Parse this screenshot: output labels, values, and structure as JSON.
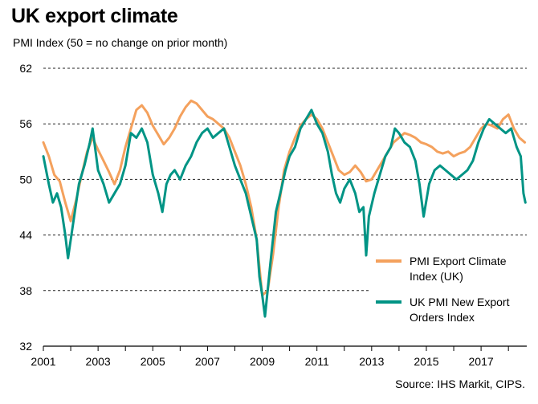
{
  "title": "UK export climate",
  "subtitle": "PMI Index  (50 = no change on prior month)",
  "source": "Source: IHS Markit, CIPS.",
  "chart_data": {
    "type": "line",
    "title": "UK export climate",
    "ylabel": "PMI Index  (50 = no change on prior month)",
    "ylim": [
      32,
      62
    ],
    "yticks": [
      32,
      38,
      44,
      50,
      56,
      62
    ],
    "ytick_labels": [
      "32",
      "38",
      "44",
      "50",
      "56",
      "62"
    ],
    "xlim": [
      2001,
      2018.67
    ],
    "xticks": [
      2001,
      2003,
      2005,
      2007,
      2009,
      2011,
      2013,
      2015,
      2017
    ],
    "xtick_labels": [
      "2001",
      "2003",
      "2005",
      "2007",
      "2009",
      "2011",
      "2013",
      "2015",
      "2017"
    ],
    "grid": "horizontal dashed",
    "legend_position": "bottom-right",
    "series": [
      {
        "name": "PMI Export Climate Index (UK)",
        "color": "#f4a15d",
        "points": [
          [
            2001.0,
            54.0
          ],
          [
            2001.2,
            52.5
          ],
          [
            2001.4,
            50.5
          ],
          [
            2001.6,
            49.8
          ],
          [
            2001.8,
            47.5
          ],
          [
            2002.0,
            45.5
          ],
          [
            2002.2,
            47.8
          ],
          [
            2002.4,
            50.5
          ],
          [
            2002.6,
            53.0
          ],
          [
            2002.8,
            54.5
          ],
          [
            2003.0,
            53.2
          ],
          [
            2003.2,
            52.0
          ],
          [
            2003.4,
            50.8
          ],
          [
            2003.6,
            49.5
          ],
          [
            2003.8,
            51.0
          ],
          [
            2004.0,
            53.5
          ],
          [
            2004.2,
            55.5
          ],
          [
            2004.4,
            57.5
          ],
          [
            2004.6,
            58.0
          ],
          [
            2004.8,
            57.2
          ],
          [
            2005.0,
            55.8
          ],
          [
            2005.2,
            54.8
          ],
          [
            2005.4,
            53.8
          ],
          [
            2005.6,
            54.5
          ],
          [
            2005.8,
            55.5
          ],
          [
            2006.0,
            56.8
          ],
          [
            2006.2,
            57.8
          ],
          [
            2006.4,
            58.5
          ],
          [
            2006.6,
            58.2
          ],
          [
            2006.8,
            57.5
          ],
          [
            2007.0,
            56.8
          ],
          [
            2007.2,
            56.5
          ],
          [
            2007.4,
            56.0
          ],
          [
            2007.6,
            55.5
          ],
          [
            2007.8,
            54.5
          ],
          [
            2008.0,
            53.0
          ],
          [
            2008.2,
            51.5
          ],
          [
            2008.4,
            49.5
          ],
          [
            2008.6,
            47.0
          ],
          [
            2008.8,
            43.5
          ],
          [
            2009.0,
            37.5
          ],
          [
            2009.2,
            38.0
          ],
          [
            2009.4,
            42.0
          ],
          [
            2009.6,
            47.0
          ],
          [
            2009.8,
            51.0
          ],
          [
            2010.0,
            53.0
          ],
          [
            2010.2,
            54.5
          ],
          [
            2010.4,
            55.8
          ],
          [
            2010.6,
            56.5
          ],
          [
            2010.8,
            57.0
          ],
          [
            2011.0,
            56.5
          ],
          [
            2011.2,
            55.5
          ],
          [
            2011.4,
            54.0
          ],
          [
            2011.6,
            52.5
          ],
          [
            2011.8,
            51.0
          ],
          [
            2012.0,
            50.5
          ],
          [
            2012.2,
            50.8
          ],
          [
            2012.4,
            51.5
          ],
          [
            2012.6,
            50.8
          ],
          [
            2012.8,
            49.8
          ],
          [
            2013.0,
            50.0
          ],
          [
            2013.2,
            51.0
          ],
          [
            2013.4,
            52.0
          ],
          [
            2013.6,
            53.0
          ],
          [
            2013.8,
            54.0
          ],
          [
            2014.0,
            54.5
          ],
          [
            2014.2,
            55.0
          ],
          [
            2014.4,
            54.8
          ],
          [
            2014.6,
            54.5
          ],
          [
            2014.8,
            54.0
          ],
          [
            2015.0,
            53.8
          ],
          [
            2015.2,
            53.5
          ],
          [
            2015.4,
            53.0
          ],
          [
            2015.6,
            52.8
          ],
          [
            2015.8,
            53.0
          ],
          [
            2016.0,
            52.5
          ],
          [
            2016.2,
            52.8
          ],
          [
            2016.4,
            53.0
          ],
          [
            2016.6,
            53.5
          ],
          [
            2016.8,
            54.5
          ],
          [
            2017.0,
            55.5
          ],
          [
            2017.2,
            56.0
          ],
          [
            2017.4,
            55.8
          ],
          [
            2017.6,
            55.5
          ],
          [
            2017.8,
            56.5
          ],
          [
            2018.0,
            57.0
          ],
          [
            2018.2,
            55.5
          ],
          [
            2018.4,
            54.5
          ],
          [
            2018.6,
            54.0
          ]
        ]
      },
      {
        "name": "UK PMI New Export Orders Index",
        "color": "#009485",
        "points": [
          [
            2001.0,
            52.5
          ],
          [
            2001.2,
            49.5
          ],
          [
            2001.35,
            47.5
          ],
          [
            2001.5,
            48.5
          ],
          [
            2001.65,
            47.0
          ],
          [
            2001.8,
            44.0
          ],
          [
            2001.9,
            41.5
          ],
          [
            2002.1,
            45.5
          ],
          [
            2002.3,
            49.5
          ],
          [
            2002.5,
            51.5
          ],
          [
            2002.7,
            54.0
          ],
          [
            2002.8,
            55.5
          ],
          [
            2003.0,
            51.0
          ],
          [
            2003.2,
            49.5
          ],
          [
            2003.4,
            47.5
          ],
          [
            2003.6,
            48.5
          ],
          [
            2003.8,
            49.5
          ],
          [
            2004.0,
            51.5
          ],
          [
            2004.2,
            55.0
          ],
          [
            2004.4,
            54.5
          ],
          [
            2004.6,
            55.5
          ],
          [
            2004.8,
            54.0
          ],
          [
            2005.0,
            50.5
          ],
          [
            2005.2,
            48.5
          ],
          [
            2005.35,
            46.5
          ],
          [
            2005.5,
            49.5
          ],
          [
            2005.65,
            50.5
          ],
          [
            2005.8,
            51.0
          ],
          [
            2006.0,
            50.0
          ],
          [
            2006.2,
            51.5
          ],
          [
            2006.4,
            52.5
          ],
          [
            2006.6,
            54.0
          ],
          [
            2006.8,
            55.0
          ],
          [
            2007.0,
            55.5
          ],
          [
            2007.2,
            54.5
          ],
          [
            2007.4,
            55.0
          ],
          [
            2007.6,
            55.5
          ],
          [
            2007.8,
            53.5
          ],
          [
            2008.0,
            51.5
          ],
          [
            2008.2,
            50.0
          ],
          [
            2008.4,
            48.5
          ],
          [
            2008.6,
            46.0
          ],
          [
            2008.8,
            43.5
          ],
          [
            2008.9,
            39.5
          ],
          [
            2009.0,
            37.5
          ],
          [
            2009.1,
            35.2
          ],
          [
            2009.3,
            41.0
          ],
          [
            2009.5,
            46.5
          ],
          [
            2009.7,
            49.0
          ],
          [
            2009.85,
            51.0
          ],
          [
            2010.0,
            52.5
          ],
          [
            2010.2,
            53.5
          ],
          [
            2010.4,
            55.5
          ],
          [
            2010.6,
            56.5
          ],
          [
            2010.8,
            57.5
          ],
          [
            2011.0,
            56.0
          ],
          [
            2011.2,
            55.0
          ],
          [
            2011.4,
            53.0
          ],
          [
            2011.55,
            50.5
          ],
          [
            2011.7,
            48.5
          ],
          [
            2011.85,
            47.5
          ],
          [
            2012.0,
            49.0
          ],
          [
            2012.2,
            50.0
          ],
          [
            2012.4,
            48.5
          ],
          [
            2012.55,
            46.5
          ],
          [
            2012.7,
            47.0
          ],
          [
            2012.8,
            41.8
          ],
          [
            2012.9,
            46.0
          ],
          [
            2013.1,
            48.5
          ],
          [
            2013.3,
            50.5
          ],
          [
            2013.5,
            52.5
          ],
          [
            2013.7,
            53.5
          ],
          [
            2013.85,
            55.5
          ],
          [
            2014.0,
            55.0
          ],
          [
            2014.2,
            54.0
          ],
          [
            2014.4,
            53.5
          ],
          [
            2014.6,
            52.0
          ],
          [
            2014.75,
            49.5
          ],
          [
            2014.9,
            46.0
          ],
          [
            2015.1,
            49.5
          ],
          [
            2015.3,
            51.0
          ],
          [
            2015.5,
            51.5
          ],
          [
            2015.7,
            51.0
          ],
          [
            2015.9,
            50.5
          ],
          [
            2016.1,
            50.0
          ],
          [
            2016.3,
            50.5
          ],
          [
            2016.5,
            51.0
          ],
          [
            2016.7,
            52.0
          ],
          [
            2016.9,
            54.0
          ],
          [
            2017.1,
            55.5
          ],
          [
            2017.3,
            56.5
          ],
          [
            2017.5,
            56.0
          ],
          [
            2017.7,
            55.5
          ],
          [
            2017.9,
            55.0
          ],
          [
            2018.1,
            55.5
          ],
          [
            2018.3,
            53.5
          ],
          [
            2018.45,
            52.5
          ],
          [
            2018.55,
            48.5
          ],
          [
            2018.62,
            47.5
          ]
        ]
      }
    ]
  }
}
